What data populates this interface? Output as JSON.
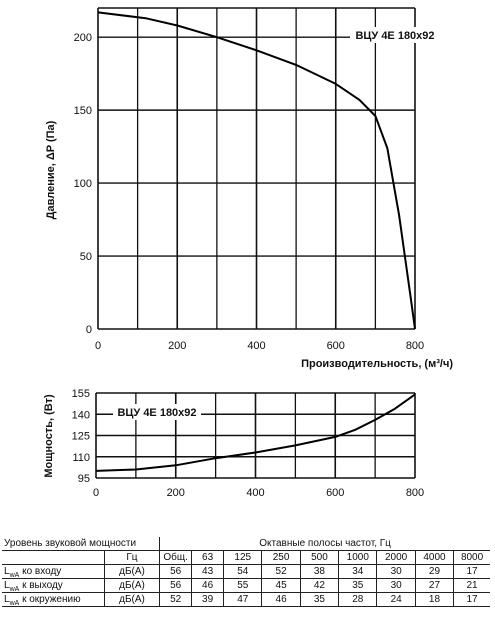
{
  "chart_data": [
    {
      "type": "line",
      "title": "ВЦУ 4Е 180х92",
      "xlabel": "Производительность, (м³/ч)",
      "ylabel": "Давление, ΔP (Па)",
      "xlim": [
        0,
        800
      ],
      "ylim": [
        0,
        220
      ],
      "xticks": [
        0,
        200,
        400,
        600,
        800
      ],
      "yticks": [
        0,
        50,
        100,
        150,
        200
      ],
      "grid": true,
      "series": [
        {
          "x": [
            0,
            120,
            200,
            300,
            400,
            500,
            600,
            660,
            700,
            730,
            760,
            790,
            800
          ],
          "y": [
            217,
            213,
            208,
            200,
            191,
            181,
            168,
            157,
            146,
            124,
            78,
            20,
            0
          ]
        }
      ]
    },
    {
      "type": "line",
      "title": "ВЦУ 4Е 180х92",
      "xlabel": "",
      "ylabel": "Мощность, (Вт)",
      "xlim": [
        0,
        800
      ],
      "ylim": [
        95,
        155
      ],
      "xticks": [
        0,
        200,
        400,
        600,
        800
      ],
      "yticks": [
        95,
        110,
        125,
        140,
        155
      ],
      "grid": true,
      "series": [
        {
          "x": [
            0,
            100,
            200,
            300,
            400,
            500,
            600,
            650,
            700,
            750,
            800
          ],
          "y": [
            100,
            101,
            104,
            109,
            113,
            118,
            124,
            129,
            136,
            144,
            154
          ]
        }
      ]
    }
  ],
  "sound_table": {
    "header_label": "Уровень звуковой мощности",
    "header_group": "Октавные полосы частот, Гц",
    "unit_label": "Гц",
    "columns": [
      "Общ.",
      "63",
      "125",
      "250",
      "500",
      "1000",
      "2000",
      "4000",
      "8000"
    ],
    "rows": [
      {
        "label_main": "L",
        "label_sub": "wA",
        "label_rest": " ко входу",
        "unit": "дБ(А)",
        "values": [
          "56",
          "43",
          "54",
          "52",
          "38",
          "34",
          "30",
          "29",
          "17"
        ]
      },
      {
        "label_main": "L",
        "label_sub": "wA",
        "label_rest": " к выходу",
        "unit": "дБ(А)",
        "values": [
          "56",
          "46",
          "55",
          "45",
          "42",
          "35",
          "30",
          "27",
          "21"
        ]
      },
      {
        "label_main": "L",
        "label_sub": "wA",
        "label_rest": " к окружению",
        "unit": "дБ(А)",
        "values": [
          "52",
          "39",
          "47",
          "46",
          "35",
          "28",
          "24",
          "18",
          "17"
        ]
      }
    ]
  }
}
